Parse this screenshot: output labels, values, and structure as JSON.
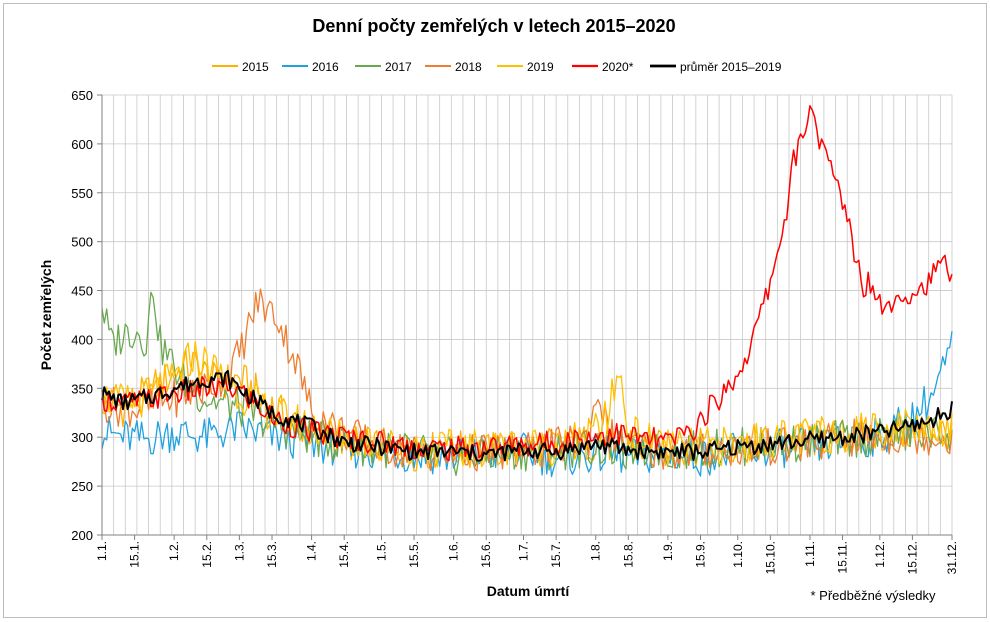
{
  "chart_data": {
    "type": "line",
    "title": "Denní počty zemřelých v letech 2015–2020",
    "xlabel": "Datum úmrtí",
    "ylabel": "Počet zemřelých",
    "ylim": [
      200,
      650
    ],
    "yticks": [
      200,
      250,
      300,
      350,
      400,
      450,
      500,
      550,
      600,
      650
    ],
    "xlim": [
      1,
      366
    ],
    "x_tick_labels": [
      "1.1.",
      "15.1.",
      "1.2.",
      "15.2.",
      "1.3.",
      "15.3.",
      "1.4.",
      "15.4.",
      "1.5.",
      "15.5.",
      "1.6.",
      "15.6.",
      "1.7.",
      "15.7.",
      "1.8.",
      "15.8.",
      "1.9.",
      "15.9.",
      "1.10.",
      "15.10.",
      "1.11.",
      "15.11.",
      "1.12.",
      "15.12.",
      "31.12."
    ],
    "x_tick_days": [
      1,
      15,
      32,
      46,
      60,
      74,
      91,
      105,
      121,
      135,
      152,
      166,
      182,
      196,
      213,
      227,
      244,
      258,
      274,
      288,
      305,
      319,
      335,
      349,
      366
    ],
    "grid": "vertical-daily-and-horizontal",
    "legend_position": "top",
    "footnote": "* Předběžné výsledky",
    "series": [
      {
        "name": "2015",
        "color": "#FFB000",
        "width": 1.3,
        "points": [
          [
            1,
            340
          ],
          [
            10,
            330
          ],
          [
            20,
            345
          ],
          [
            32,
            365
          ],
          [
            40,
            375
          ],
          [
            50,
            355
          ],
          [
            60,
            360
          ],
          [
            70,
            340
          ],
          [
            80,
            320
          ],
          [
            91,
            305
          ],
          [
            105,
            295
          ],
          [
            121,
            290
          ],
          [
            135,
            285
          ],
          [
            152,
            288
          ],
          [
            166,
            285
          ],
          [
            182,
            290
          ],
          [
            196,
            292
          ],
          [
            213,
            295
          ],
          [
            227,
            290
          ],
          [
            244,
            288
          ],
          [
            258,
            290
          ],
          [
            274,
            292
          ],
          [
            288,
            295
          ],
          [
            305,
            298
          ],
          [
            319,
            300
          ],
          [
            335,
            302
          ],
          [
            349,
            305
          ],
          [
            366,
            305
          ]
        ]
      },
      {
        "name": "2016",
        "color": "#1FA2E0",
        "width": 1.3,
        "points": [
          [
            1,
            305
          ],
          [
            10,
            300
          ],
          [
            20,
            298
          ],
          [
            32,
            305
          ],
          [
            46,
            300
          ],
          [
            60,
            310
          ],
          [
            74,
            300
          ],
          [
            91,
            295
          ],
          [
            105,
            288
          ],
          [
            121,
            285
          ],
          [
            135,
            282
          ],
          [
            152,
            280
          ],
          [
            166,
            282
          ],
          [
            182,
            285
          ],
          [
            196,
            278
          ],
          [
            213,
            282
          ],
          [
            227,
            280
          ],
          [
            244,
            282
          ],
          [
            258,
            280
          ],
          [
            274,
            285
          ],
          [
            288,
            288
          ],
          [
            305,
            290
          ],
          [
            319,
            295
          ],
          [
            335,
            300
          ],
          [
            349,
            320
          ],
          [
            358,
            345
          ],
          [
            366,
            390
          ]
        ]
      },
      {
        "name": "2017",
        "color": "#6AA84F",
        "width": 1.3,
        "points": [
          [
            1,
            435
          ],
          [
            5,
            395
          ],
          [
            10,
            405
          ],
          [
            15,
            410
          ],
          [
            20,
            400
          ],
          [
            23,
            455
          ],
          [
            26,
            395
          ],
          [
            30,
            380
          ],
          [
            35,
            360
          ],
          [
            45,
            340
          ],
          [
            60,
            330
          ],
          [
            74,
            315
          ],
          [
            91,
            300
          ],
          [
            105,
            292
          ],
          [
            121,
            288
          ],
          [
            135,
            285
          ],
          [
            152,
            280
          ],
          [
            166,
            282
          ],
          [
            182,
            285
          ],
          [
            196,
            285
          ],
          [
            213,
            290
          ],
          [
            227,
            285
          ],
          [
            244,
            285
          ],
          [
            258,
            288
          ],
          [
            274,
            290
          ],
          [
            288,
            292
          ],
          [
            305,
            295
          ],
          [
            319,
            298
          ],
          [
            335,
            300
          ],
          [
            349,
            302
          ],
          [
            366,
            305
          ]
        ]
      },
      {
        "name": "2018",
        "color": "#ED7D31",
        "width": 1.3,
        "points": [
          [
            1,
            335
          ],
          [
            10,
            330
          ],
          [
            20,
            330
          ],
          [
            32,
            340
          ],
          [
            46,
            350
          ],
          [
            55,
            365
          ],
          [
            60,
            385
          ],
          [
            65,
            420
          ],
          [
            68,
            440
          ],
          [
            72,
            430
          ],
          [
            76,
            425
          ],
          [
            80,
            400
          ],
          [
            84,
            380
          ],
          [
            88,
            350
          ],
          [
            91,
            325
          ],
          [
            105,
            305
          ],
          [
            121,
            290
          ],
          [
            135,
            285
          ],
          [
            152,
            282
          ],
          [
            166,
            285
          ],
          [
            182,
            285
          ],
          [
            196,
            290
          ],
          [
            210,
            300
          ],
          [
            214,
            350
          ],
          [
            218,
            305
          ],
          [
            227,
            290
          ],
          [
            244,
            285
          ],
          [
            258,
            285
          ],
          [
            274,
            288
          ],
          [
            288,
            290
          ],
          [
            305,
            292
          ],
          [
            319,
            298
          ],
          [
            335,
            300
          ],
          [
            349,
            302
          ],
          [
            366,
            300
          ]
        ]
      },
      {
        "name": "2019",
        "color": "#FFC000",
        "width": 1.3,
        "points": [
          [
            1,
            340
          ],
          [
            10,
            335
          ],
          [
            20,
            340
          ],
          [
            32,
            360
          ],
          [
            40,
            385
          ],
          [
            46,
            375
          ],
          [
            55,
            360
          ],
          [
            60,
            345
          ],
          [
            74,
            325
          ],
          [
            91,
            310
          ],
          [
            105,
            300
          ],
          [
            121,
            292
          ],
          [
            135,
            290
          ],
          [
            152,
            288
          ],
          [
            166,
            290
          ],
          [
            182,
            292
          ],
          [
            196,
            290
          ],
          [
            210,
            300
          ],
          [
            218,
            320
          ],
          [
            223,
            370
          ],
          [
            227,
            305
          ],
          [
            244,
            288
          ],
          [
            258,
            290
          ],
          [
            274,
            292
          ],
          [
            288,
            298
          ],
          [
            305,
            300
          ],
          [
            319,
            305
          ],
          [
            335,
            310
          ],
          [
            349,
            312
          ],
          [
            366,
            310
          ]
        ]
      },
      {
        "name": "2020*",
        "color": "#FF0000",
        "width": 1.5,
        "points": [
          [
            1,
            340
          ],
          [
            10,
            335
          ],
          [
            20,
            338
          ],
          [
            32,
            345
          ],
          [
            46,
            350
          ],
          [
            60,
            348
          ],
          [
            74,
            320
          ],
          [
            91,
            305
          ],
          [
            105,
            300
          ],
          [
            121,
            295
          ],
          [
            135,
            290
          ],
          [
            152,
            288
          ],
          [
            166,
            290
          ],
          [
            182,
            292
          ],
          [
            196,
            295
          ],
          [
            210,
            300
          ],
          [
            220,
            305
          ],
          [
            230,
            300
          ],
          [
            244,
            295
          ],
          [
            256,
            310
          ],
          [
            262,
            330
          ],
          [
            268,
            345
          ],
          [
            274,
            365
          ],
          [
            279,
            390
          ],
          [
            283,
            420
          ],
          [
            287,
            450
          ],
          [
            290,
            480
          ],
          [
            293,
            510
          ],
          [
            296,
            545
          ],
          [
            298,
            585
          ],
          [
            301,
            600
          ],
          [
            304,
            625
          ],
          [
            306,
            645
          ],
          [
            308,
            610
          ],
          [
            311,
            590
          ],
          [
            314,
            575
          ],
          [
            317,
            555
          ],
          [
            320,
            535
          ],
          [
            323,
            505
          ],
          [
            325,
            480
          ],
          [
            328,
            455
          ],
          [
            331,
            460
          ],
          [
            334,
            445
          ],
          [
            337,
            430
          ],
          [
            340,
            440
          ],
          [
            344,
            450
          ],
          [
            348,
            445
          ],
          [
            352,
            450
          ],
          [
            356,
            460
          ],
          [
            360,
            470
          ],
          [
            364,
            480
          ],
          [
            366,
            465
          ]
        ]
      },
      {
        "name": "průměr 2015–2019",
        "color": "#000000",
        "width": 2,
        "points": [
          [
            1,
            345
          ],
          [
            10,
            335
          ],
          [
            20,
            340
          ],
          [
            32,
            350
          ],
          [
            46,
            360
          ],
          [
            55,
            360
          ],
          [
            60,
            350
          ],
          [
            74,
            325
          ],
          [
            91,
            310
          ],
          [
            105,
            295
          ],
          [
            121,
            290
          ],
          [
            135,
            285
          ],
          [
            152,
            285
          ],
          [
            166,
            282
          ],
          [
            182,
            287
          ],
          [
            196,
            285
          ],
          [
            213,
            293
          ],
          [
            227,
            287
          ],
          [
            244,
            285
          ],
          [
            258,
            285
          ],
          [
            274,
            290
          ],
          [
            288,
            293
          ],
          [
            305,
            297
          ],
          [
            319,
            300
          ],
          [
            335,
            305
          ],
          [
            349,
            312
          ],
          [
            358,
            318
          ],
          [
            366,
            330
          ]
        ]
      }
    ]
  }
}
